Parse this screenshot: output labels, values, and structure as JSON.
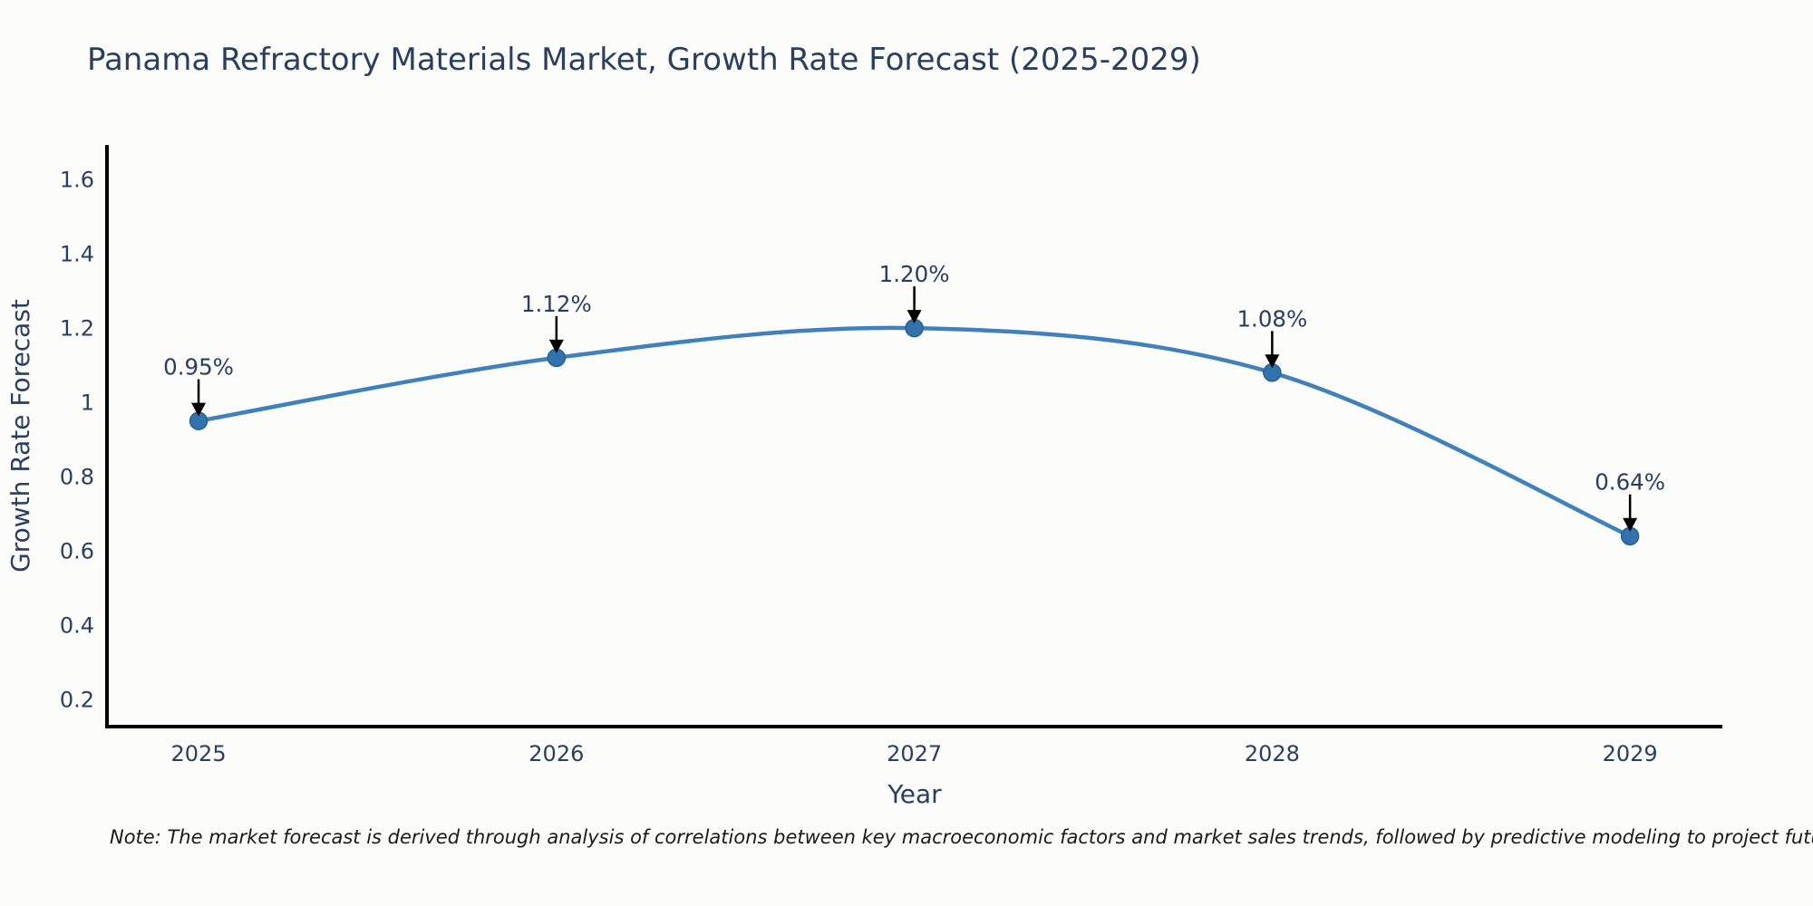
{
  "note": "Note: The market forecast is derived through analysis of correlations between key macroeconomic factors and market sales trends, followed by predictive modeling to project future sales",
  "chart_data": {
    "type": "line",
    "title": "Panama Refractory Materials Market, Growth Rate Forecast (2025-2029)",
    "xlabel": "Year",
    "ylabel": "Growth Rate Forecast",
    "x": [
      2025,
      2026,
      2027,
      2028,
      2029
    ],
    "y": [
      0.95,
      1.12,
      1.2,
      1.08,
      0.64
    ],
    "point_labels": [
      "0.95%",
      "1.12%",
      "1.20%",
      "1.08%",
      "0.64%"
    ],
    "x_tick_labels": [
      "2025",
      "2026",
      "2027",
      "2028",
      "2029"
    ],
    "y_ticks": [
      0.2,
      0.4,
      0.6,
      0.8,
      1,
      1.2,
      1.4,
      1.6
    ],
    "y_tick_labels": [
      "0.2",
      "0.4",
      "0.6",
      "0.8",
      "1",
      "1.2",
      "1.4",
      "1.6"
    ],
    "xlim": [
      2024.744,
      2029.258
    ],
    "ylim": [
      0.127,
      1.693
    ],
    "grid": false,
    "legend_position": "none",
    "line_smoothing": true,
    "colors": {
      "line": "#4080bd",
      "marker": "#3273ae",
      "marker_edge": "#28608f",
      "axis": "#000000",
      "tick_text": "#2a3f5f",
      "title_text": "#2a3f5f",
      "annotation_text": "#2a3f5f",
      "annotation_arrow": "#000000",
      "note_text": "#1a1a1a",
      "background": "#fcfcfa"
    }
  }
}
